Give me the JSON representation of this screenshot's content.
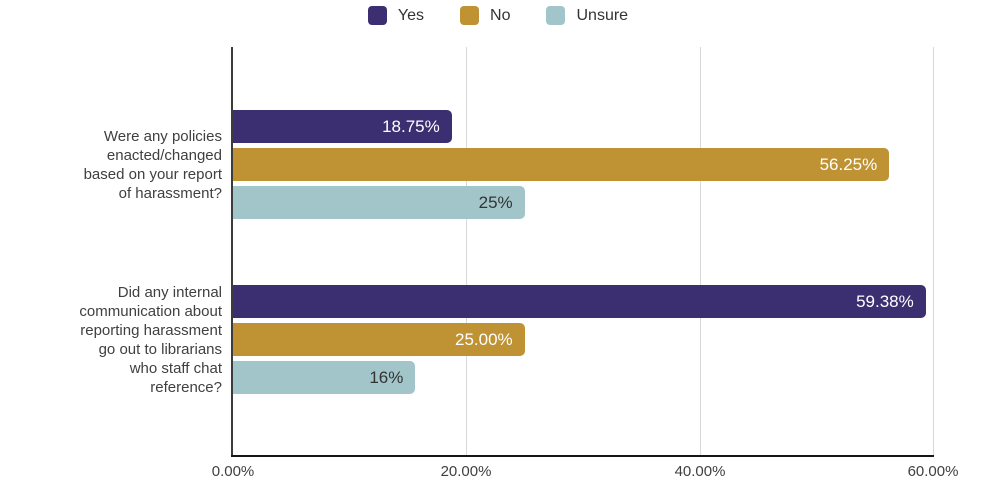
{
  "colors": {
    "background": "#ffffff",
    "axis_line": "#3c3c3c",
    "baseline": "#161616",
    "gridline": "#d8d8d8",
    "text": "#404040"
  },
  "legend": [
    {
      "label": "Yes",
      "color": "#3b2f72"
    },
    {
      "label": "No",
      "color": "#bf9233"
    },
    {
      "label": "Unsure",
      "color": "#a2c5ca"
    }
  ],
  "chart_data": {
    "type": "bar",
    "orientation": "horizontal",
    "title": "",
    "xlabel": "",
    "ylabel": "",
    "xlim": [
      0,
      60
    ],
    "grid": true,
    "legend_position": "top",
    "x_ticks": [
      {
        "value": 0,
        "label": "0.00%"
      },
      {
        "value": 20,
        "label": "20.00%"
      },
      {
        "value": 40,
        "label": "40.00%"
      },
      {
        "value": 60,
        "label": "60.00%"
      }
    ],
    "categories": [
      {
        "text": "Were any policies enacted/changed based on your report of harassment?",
        "lines": [
          "Were any policies",
          "enacted/changed",
          "based on your report",
          "of harassment?"
        ]
      },
      {
        "text": "Did any internal communication about reporting harassment go out to librarians who staff chat reference?",
        "lines": [
          "Did any internal",
          "communication about",
          "reporting harassment",
          "go out to librarians",
          "who staff chat",
          "reference?"
        ]
      }
    ],
    "series": [
      {
        "name": "Yes",
        "color": "#3b2f72",
        "label_color": "#ffffff",
        "values": [
          18.75,
          59.38
        ],
        "labels": [
          "18.75%",
          "59.38%"
        ]
      },
      {
        "name": "No",
        "color": "#bf9233",
        "label_color": "#ffffff",
        "values": [
          56.25,
          25.0
        ],
        "labels": [
          "56.25%",
          "25.00%"
        ]
      },
      {
        "name": "Unsure",
        "color": "#a2c5ca",
        "label_color": "#333333",
        "values": [
          25.0,
          15.63
        ],
        "labels": [
          "25%",
          "16%"
        ]
      }
    ]
  }
}
